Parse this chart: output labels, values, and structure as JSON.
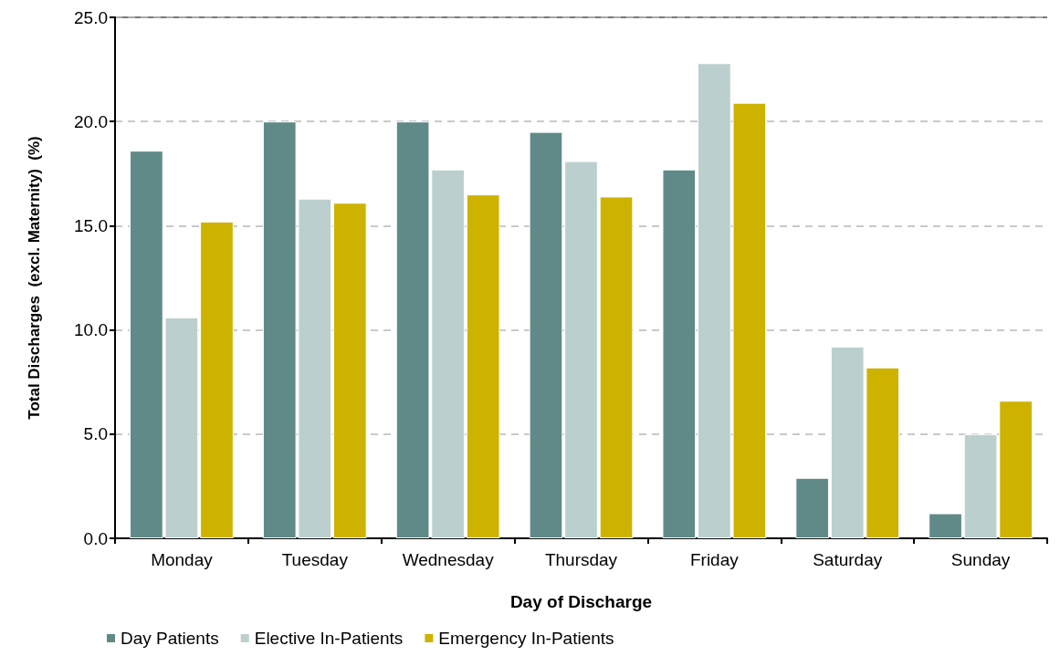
{
  "chart_data": {
    "type": "bar",
    "xlabel": "Day of Discharge",
    "ylabel": "Total Discharges  (excl. Maternity)  (%)",
    "categories": [
      "Monday",
      "Tuesday",
      "Wednesday",
      "Thursday",
      "Friday",
      "Saturday",
      "Sunday"
    ],
    "series": [
      {
        "name": "Day Patients",
        "color": "#5f8a88",
        "values": [
          18.6,
          20.0,
          20.0,
          19.5,
          17.7,
          2.9,
          1.2
        ]
      },
      {
        "name": "Elective In-Patients",
        "color": "#bbcfce",
        "values": [
          10.6,
          16.3,
          17.7,
          18.1,
          22.8,
          9.2,
          5.0
        ]
      },
      {
        "name": "Emergency In-Patients",
        "color": "#cdb300",
        "values": [
          15.2,
          16.1,
          16.5,
          16.4,
          20.9,
          8.2,
          6.6
        ]
      }
    ],
    "ylim": [
      0,
      25
    ],
    "yticks": [
      {
        "value": 0,
        "label": "0.0"
      },
      {
        "value": 5,
        "label": "5.0"
      },
      {
        "value": 10,
        "label": "10.0"
      },
      {
        "value": 15,
        "label": "15.0"
      },
      {
        "value": 20,
        "label": "20.0"
      },
      {
        "value": 25,
        "label": "25.0"
      }
    ],
    "grid": "y",
    "legend": "bottom"
  }
}
